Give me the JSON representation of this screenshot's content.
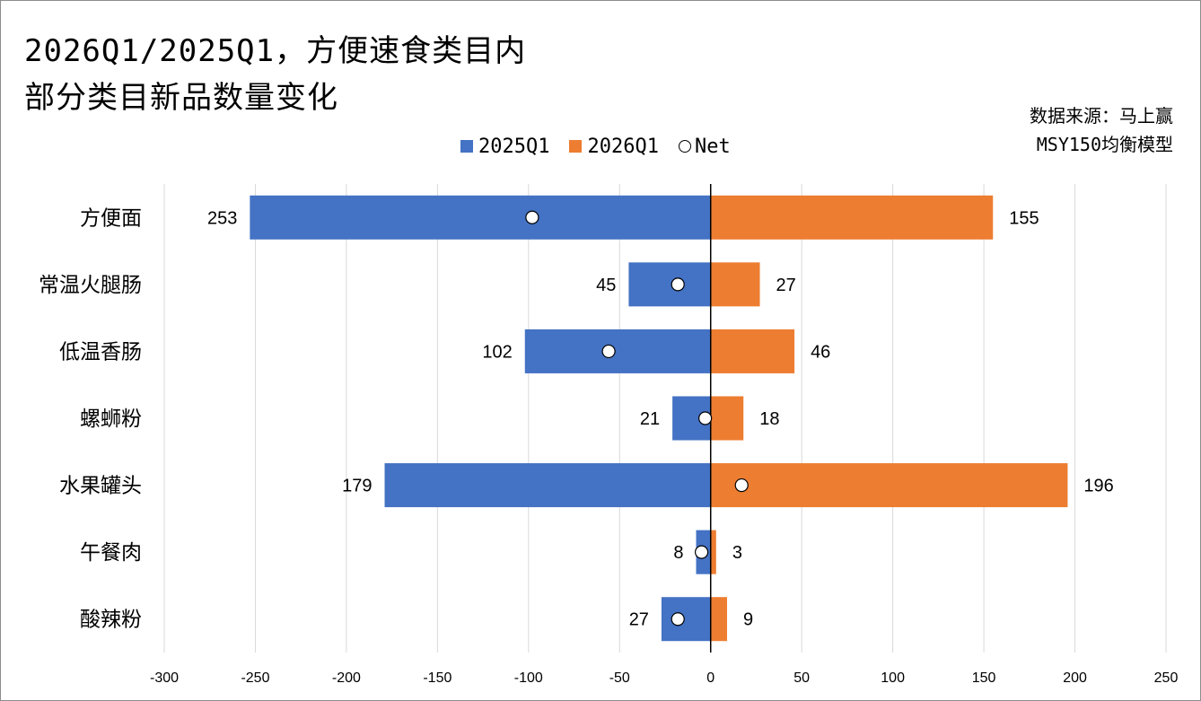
{
  "header": {
    "title_line1": "2026Q1/2025Q1，方便速食类目内",
    "title_line2": "部分类目新品数量变化",
    "source_line1": "数据来源：马上赢",
    "source_line2": "MSY150均衡模型"
  },
  "legend": {
    "items": [
      {
        "label": "2025Q1",
        "color": "#4472C4",
        "shape": "square"
      },
      {
        "label": "2026Q1",
        "color": "#ED7D31",
        "shape": "square"
      },
      {
        "label": "Net",
        "color": "#FFFFFF",
        "shape": "circle"
      }
    ]
  },
  "chart_data": {
    "type": "bar",
    "orientation": "horizontal-diverging",
    "categories": [
      "方便面",
      "常温火腿肠",
      "低温香肠",
      "螺蛳粉",
      "水果罐头",
      "午餐肉",
      "酸辣粉"
    ],
    "series": [
      {
        "name": "2025Q1",
        "values": [
          -253,
          -45,
          -102,
          -21,
          -179,
          -8,
          -27
        ],
        "labels": [
          "253",
          "45",
          "102",
          "21",
          "179",
          "8",
          "27"
        ],
        "color": "#4472C4"
      },
      {
        "name": "2026Q1",
        "values": [
          155,
          27,
          46,
          18,
          196,
          3,
          9
        ],
        "labels": [
          "155",
          "27",
          "46",
          "18",
          "196",
          "3",
          "9"
        ],
        "color": "#ED7D31"
      },
      {
        "name": "Net",
        "values": [
          -98,
          -18,
          -56,
          -3,
          17,
          -5,
          -18
        ],
        "marker": "circle"
      }
    ],
    "xlim": [
      -300,
      250
    ],
    "xticks": [
      -300,
      -250,
      -200,
      -150,
      -100,
      -50,
      0,
      50,
      100,
      150,
      200,
      250
    ],
    "grid": "vertical"
  }
}
